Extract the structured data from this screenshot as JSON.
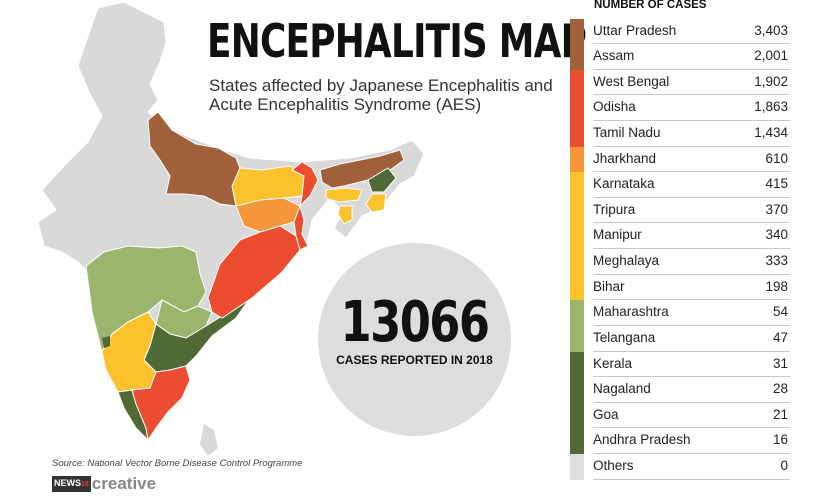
{
  "title": "ENCEPHALITIS MAP",
  "subtitle": "States affected by Japanese Encephalitis and Acute Encephalitis Syndrome (AES)",
  "stat": {
    "value": "13066",
    "caption": "CASES REPORTED IN 2018"
  },
  "source": "Source: National Vector Borne Disease Control Programme",
  "brand": {
    "box": "NEWS",
    "sup": "18",
    "text": "creative"
  },
  "legend": {
    "header": "NUMBER OF CASES",
    "rows": [
      {
        "state": "Uttar Pradesh",
        "cases": "3,403",
        "color": "#a0613a"
      },
      {
        "state": "Assam",
        "cases": "2,001",
        "color": "#a0613a"
      },
      {
        "state": "West Bengal",
        "cases": "1,902",
        "color": "#ec4c2f"
      },
      {
        "state": "Odisha",
        "cases": "1,863",
        "color": "#ec4c2f"
      },
      {
        "state": "Tamil Nadu",
        "cases": "1,434",
        "color": "#ec4c2f"
      },
      {
        "state": "Jharkhand",
        "cases": "610",
        "color": "#f7953a"
      },
      {
        "state": "Karnataka",
        "cases": "415",
        "color": "#fbc22d"
      },
      {
        "state": "Tripura",
        "cases": "370",
        "color": "#fbc22d"
      },
      {
        "state": "Manipur",
        "cases": "340",
        "color": "#fbc22d"
      },
      {
        "state": "Meghalaya",
        "cases": "333",
        "color": "#fbc22d"
      },
      {
        "state": "Bihar",
        "cases": "198",
        "color": "#fbc22d"
      },
      {
        "state": "Maharashtra",
        "cases": "54",
        "color": "#9ab56c"
      },
      {
        "state": "Telangana",
        "cases": "47",
        "color": "#9ab56c"
      },
      {
        "state": "Kerala",
        "cases": "31",
        "color": "#4f6a35"
      },
      {
        "state": "Nagaland",
        "cases": "28",
        "color": "#4f6a35"
      },
      {
        "state": "Goa",
        "cases": "21",
        "color": "#4f6a35"
      },
      {
        "state": "Andhra Pradesh",
        "cases": "16",
        "color": "#4f6a35"
      },
      {
        "state": "Others",
        "cases": "0",
        "color": "#dedede"
      }
    ]
  },
  "map_colors": {
    "default": "#d9d9d9",
    "outline": "#ffffff"
  }
}
